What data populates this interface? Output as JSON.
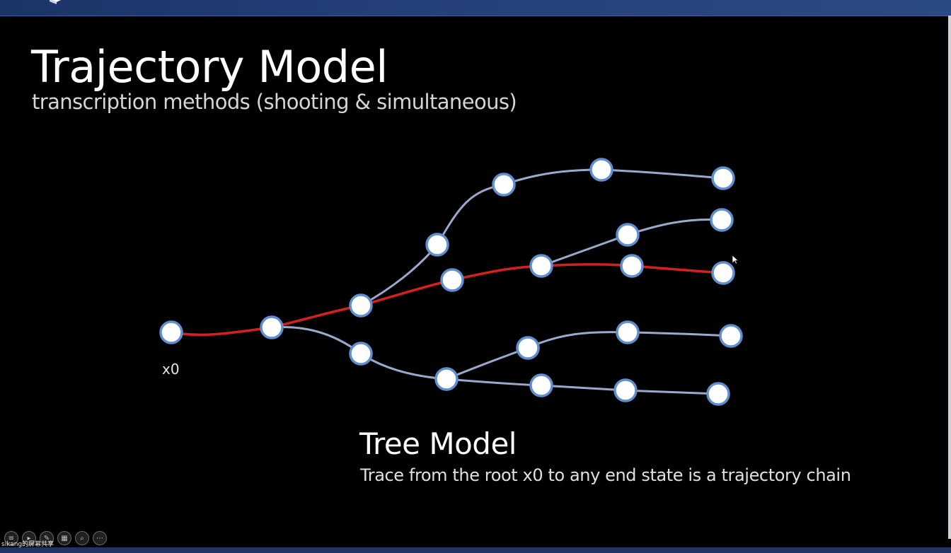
{
  "slide": {
    "title": "Trajectory Model",
    "subtitle": "transcription methods (shooting & simultaneous)"
  },
  "diagram": {
    "root_label": "x0",
    "caption_title": "Tree Model",
    "caption_text": "Trace from the root x0 to any end state is a trajectory chain",
    "colors": {
      "branch": "#9aa9cc",
      "highlight_path": "#d42020",
      "node_fill": "#ffffff",
      "node_stroke": "#5f8fd0"
    }
  },
  "toolbar": {
    "buttons": [
      {
        "name": "list-icon",
        "glyph": "≡"
      },
      {
        "name": "play-icon",
        "glyph": "▸"
      },
      {
        "name": "pen-icon",
        "glyph": "✎"
      },
      {
        "name": "grid-icon",
        "glyph": "▦"
      },
      {
        "name": "zoom-icon",
        "glyph": "⌕"
      },
      {
        "name": "more-icon",
        "glyph": "⋯"
      }
    ],
    "share_status": "sikang的屏幕共享"
  }
}
